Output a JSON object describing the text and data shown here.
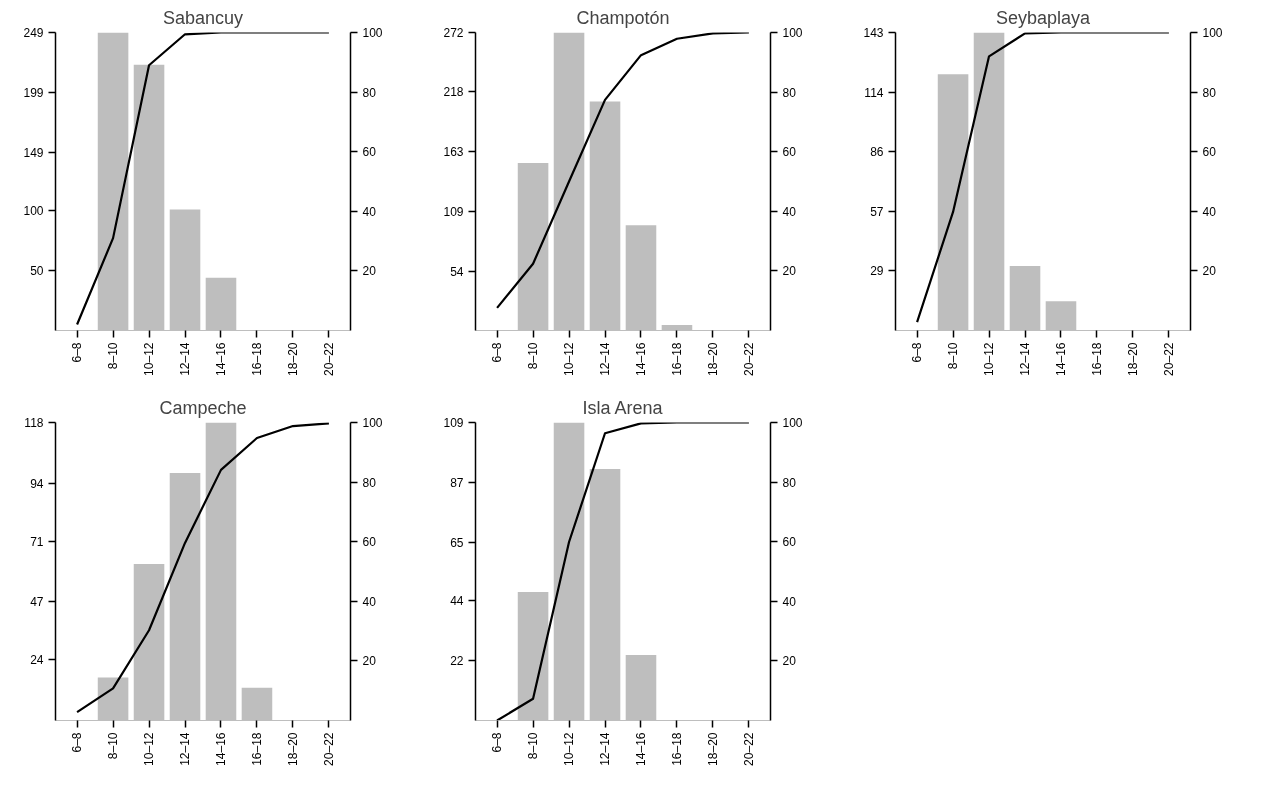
{
  "chart_data": [
    {
      "type": "bar",
      "title": "Sabancuy",
      "categories": [
        "6–8",
        "8–10",
        "10–12",
        "12–14",
        "14–16",
        "16–18",
        "18–20",
        "20–22"
      ],
      "series": [
        {
          "color": "#bebebe",
          "values": [
            0,
            249,
            222,
            101,
            44,
            0,
            0,
            0
          ]
        },
        {
          "type": "line",
          "axis": "y2",
          "color": "#000000",
          "values": [
            2,
            31,
            89,
            99.4,
            100,
            100,
            100,
            100
          ]
        }
      ],
      "ylim": [
        0,
        249
      ],
      "yticks": [
        50,
        100,
        149,
        199,
        249
      ],
      "y2lim": [
        0,
        100
      ],
      "y2ticks": [
        20,
        40,
        60,
        80,
        100
      ]
    },
    {
      "type": "bar",
      "title": "Champotón",
      "categories": [
        "6–8",
        "8–10",
        "10–12",
        "12–14",
        "14–16",
        "16–18",
        "18–20",
        "20–22"
      ],
      "series": [
        {
          "color": "#bebebe",
          "values": [
            0,
            153,
            272,
            209,
            96,
            5,
            0,
            0
          ]
        },
        {
          "type": "line",
          "axis": "y2",
          "color": "#000000",
          "values": [
            7.6,
            22.4,
            50,
            77.4,
            92.4,
            97.9,
            99.7,
            100
          ]
        }
      ],
      "ylim": [
        0,
        272
      ],
      "yticks": [
        54,
        109,
        163,
        218,
        272
      ],
      "y2lim": [
        0,
        100
      ],
      "y2ticks": [
        20,
        40,
        60,
        80,
        100
      ]
    },
    {
      "type": "bar",
      "title": "Seybaplaya",
      "categories": [
        "6–8",
        "8–10",
        "10–12",
        "12–14",
        "14–16",
        "16–18",
        "18–20",
        "20–22"
      ],
      "series": [
        {
          "color": "#bebebe",
          "values": [
            0,
            123,
            143,
            31,
            14,
            0,
            0,
            0
          ]
        },
        {
          "type": "line",
          "axis": "y2",
          "color": "#000000",
          "values": [
            2.8,
            39.8,
            92,
            99.7,
            100,
            100,
            100,
            100
          ]
        }
      ],
      "ylim": [
        0,
        143
      ],
      "yticks": [
        29,
        57,
        86,
        114,
        143
      ],
      "y2lim": [
        0,
        100
      ],
      "y2ticks": [
        20,
        40,
        60,
        80,
        100
      ]
    },
    {
      "type": "bar",
      "title": "Campeche",
      "categories": [
        "6–8",
        "8–10",
        "10–12",
        "12–14",
        "14–16",
        "16–18",
        "18–20",
        "20–22"
      ],
      "series": [
        {
          "color": "#bebebe",
          "values": [
            0,
            17,
            62,
            98,
            118,
            13,
            0,
            0
          ]
        },
        {
          "type": "line",
          "axis": "y2",
          "color": "#000000",
          "values": [
            2.8,
            10.8,
            30.3,
            59.6,
            84.1,
            94.8,
            98.8,
            99.7
          ]
        }
      ],
      "ylim": [
        0,
        118
      ],
      "yticks": [
        24,
        47,
        71,
        94,
        118
      ],
      "y2lim": [
        0,
        100
      ],
      "y2ticks": [
        20,
        40,
        60,
        80,
        100
      ]
    },
    {
      "type": "bar",
      "title": "Isla Arena",
      "categories": [
        "6–8",
        "8–10",
        "10–12",
        "12–14",
        "14–16",
        "16–18",
        "18–20",
        "20–22"
      ],
      "series": [
        {
          "color": "#bebebe",
          "values": [
            0,
            47,
            109,
            92,
            24,
            0,
            0,
            0
          ]
        },
        {
          "type": "line",
          "axis": "y2",
          "color": "#000000",
          "values": [
            0,
            7.3,
            59.9,
            96.4,
            99.7,
            100,
            100,
            100
          ]
        }
      ],
      "ylim": [
        0,
        109
      ],
      "yticks": [
        22,
        44,
        65,
        87,
        109
      ],
      "y2lim": [
        0,
        100
      ],
      "y2ticks": [
        20,
        40,
        60,
        80,
        100
      ]
    }
  ]
}
